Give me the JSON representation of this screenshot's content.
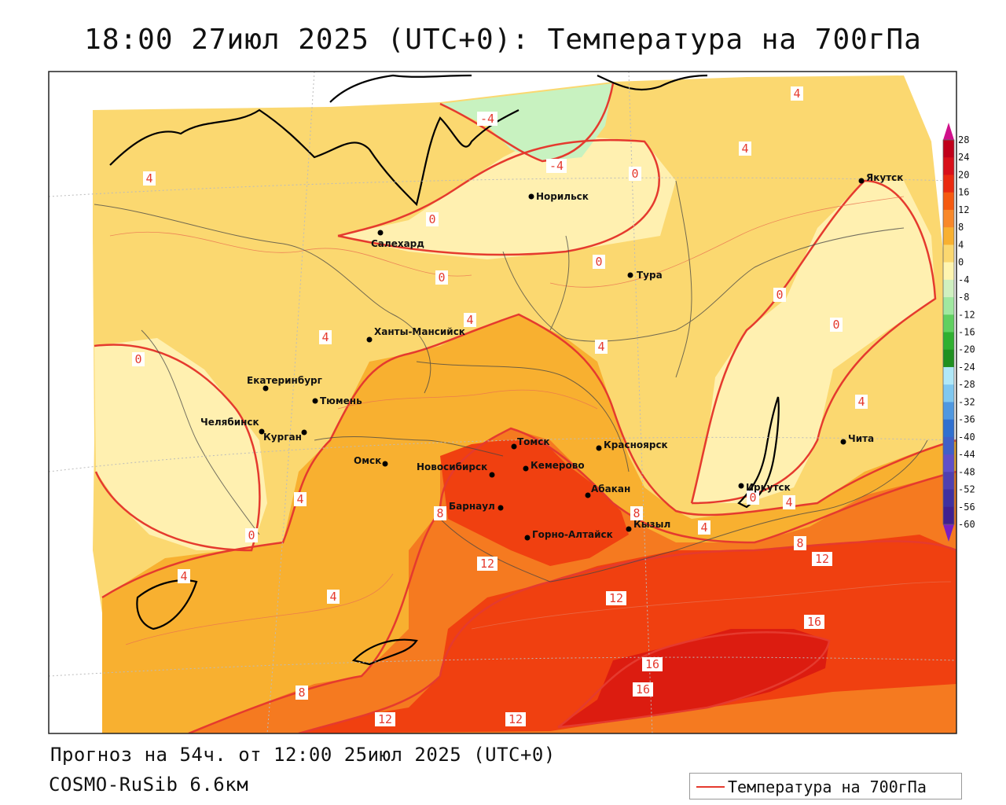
{
  "title": "18:00 27июл 2025 (UTC+0): Температура на 700гПа",
  "forecast_line": "Прогноз на 54ч. от 12:00 25июл 2025 (UTC+0)",
  "model_line": "COSMO-RuSib 6.6км",
  "legend": {
    "label": "Температура на 700гПа",
    "line_color": "#e53a2e"
  },
  "colorbar": {
    "ticks": [
      "28",
      "24",
      "20",
      "16",
      "12",
      "8",
      "4",
      "0",
      "-4",
      "-8",
      "-12",
      "-16",
      "-20",
      "-24",
      "-28",
      "-32",
      "-36",
      "-40",
      "-44",
      "-48",
      "-52",
      "-56",
      "-60"
    ],
    "colors": [
      "#c0001a",
      "#d8101a",
      "#ea2a10",
      "#f55a10",
      "#f8882a",
      "#f8b030",
      "#fbd870",
      "#fff5b0",
      "#d0f0c0",
      "#a0e8a0",
      "#60d060",
      "#30b030",
      "#209020",
      "#b0e8f8",
      "#80c8f0",
      "#5098e0",
      "#3070d0",
      "#4060c8",
      "#6050c8",
      "#5040b0",
      "#4030a0",
      "#402090"
    ]
  },
  "cities": [
    {
      "name": "Норильск"
    },
    {
      "name": "Якутск"
    },
    {
      "name": "Салехард"
    },
    {
      "name": "Тура"
    },
    {
      "name": "Ханты-Мансийск"
    },
    {
      "name": "Екатеринбург"
    },
    {
      "name": "Тюмень"
    },
    {
      "name": "Челябинск"
    },
    {
      "name": "Курган"
    },
    {
      "name": "Омск"
    },
    {
      "name": "Новосибирск"
    },
    {
      "name": "Томск"
    },
    {
      "name": "Кемерово"
    },
    {
      "name": "Красноярск"
    },
    {
      "name": "Барнаул"
    },
    {
      "name": "Абакан"
    },
    {
      "name": "Горно-Алтайск"
    },
    {
      "name": "Кызыл"
    },
    {
      "name": "Иркутск"
    },
    {
      "name": "Чита"
    }
  ],
  "isotherm_labels": [
    "4",
    "-4",
    "-4",
    "0",
    "4",
    "4",
    "0",
    "0",
    "0",
    "4",
    "0",
    "4",
    "4",
    "0",
    "0",
    "4",
    "4",
    "8",
    "12",
    "8",
    "4",
    "0",
    "8",
    "12",
    "12",
    "16",
    "16",
    "16",
    "4",
    "4",
    "8",
    "12",
    "12",
    "0",
    "4"
  ]
}
